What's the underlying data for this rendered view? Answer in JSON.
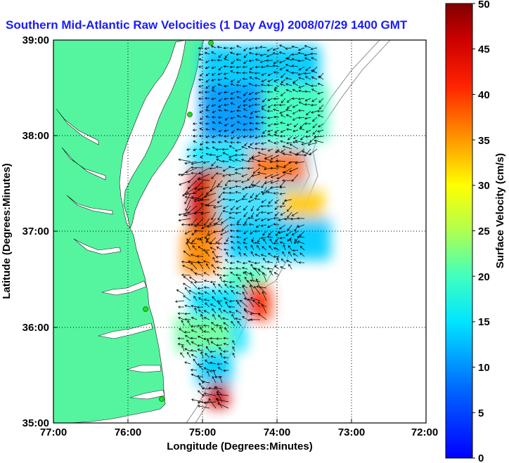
{
  "title": "Southern Mid-Atlantic Raw Velocities (1 Day Avg) 2008/07/29 1400 GMT",
  "xlabel": "Longitude (Degrees:Minutes)",
  "ylabel": "Latitude (Degrees:Minutes)",
  "colorbar_label": "Surface Velocity (cm/s)",
  "x_ticks": [
    "77:00",
    "76:00",
    "75:00",
    "74:00",
    "73:00",
    "72:00"
  ],
  "y_ticks": [
    "39:00",
    "38:00",
    "37:00",
    "36:00",
    "35:00"
  ],
  "cbar_ticks": [
    "50",
    "45",
    "40",
    "35",
    "30",
    "25",
    "20",
    "15",
    "10",
    "5",
    "0"
  ],
  "colors": {
    "land": "#55f5a0",
    "ocean": "#ffffff",
    "title": "#1a1aff",
    "station": "#22dd22",
    "bathymetry": "#a0a0a0"
  },
  "chart_data": {
    "type": "heatmap",
    "title": "Southern Mid-Atlantic Raw Velocities (1 Day Avg) 2008/07/29 1400 GMT",
    "xlabel": "Longitude (Degrees:Minutes)",
    "ylabel": "Latitude (Degrees:Minutes)",
    "xlim": [
      -77.0,
      -72.0
    ],
    "ylim": [
      35.0,
      39.0
    ],
    "colorbar": {
      "label": "Surface Velocity (cm/s)",
      "range": [
        0,
        50
      ],
      "colormap": "jet"
    },
    "grid": true,
    "marks": [
      {
        "lon": -74.8,
        "lat": 38.5,
        "speed": 8
      },
      {
        "lon": -74.5,
        "lat": 38.7,
        "speed": 10
      },
      {
        "lon": -74.1,
        "lat": 38.5,
        "speed": 13
      },
      {
        "lon": -73.8,
        "lat": 38.8,
        "speed": 18
      },
      {
        "lon": -73.7,
        "lat": 38.4,
        "speed": 16
      },
      {
        "lon": -74.9,
        "lat": 38.1,
        "speed": 5
      },
      {
        "lon": -74.5,
        "lat": 38.1,
        "speed": 8
      },
      {
        "lon": -74.0,
        "lat": 38.0,
        "speed": 12
      },
      {
        "lon": -73.8,
        "lat": 37.7,
        "speed": 33
      },
      {
        "lon": -74.1,
        "lat": 37.6,
        "speed": 30
      },
      {
        "lon": -75.1,
        "lat": 37.4,
        "speed": 47
      },
      {
        "lon": -74.8,
        "lat": 37.1,
        "speed": 30
      },
      {
        "lon": -74.5,
        "lat": 37.3,
        "speed": 15
      },
      {
        "lon": -74.5,
        "lat": 37.7,
        "speed": 17
      },
      {
        "lon": -74.0,
        "lat": 37.3,
        "speed": 14
      },
      {
        "lon": -73.7,
        "lat": 37.2,
        "speed": 22
      },
      {
        "lon": -74.5,
        "lat": 36.9,
        "speed": 9
      },
      {
        "lon": -74.1,
        "lat": 36.8,
        "speed": 14
      },
      {
        "lon": -75.0,
        "lat": 36.8,
        "speed": 17
      },
      {
        "lon": -75.2,
        "lat": 36.7,
        "speed": 30
      },
      {
        "lon": -74.6,
        "lat": 36.4,
        "speed": 13
      },
      {
        "lon": -74.2,
        "lat": 36.3,
        "speed": 36
      },
      {
        "lon": -74.6,
        "lat": 36.1,
        "speed": 16
      },
      {
        "lon": -74.9,
        "lat": 35.9,
        "speed": 15
      },
      {
        "lon": -75.2,
        "lat": 35.8,
        "speed": 17
      },
      {
        "lon": -74.6,
        "lat": 35.7,
        "speed": 11
      },
      {
        "lon": -75.0,
        "lat": 35.5,
        "speed": 16
      },
      {
        "lon": -74.8,
        "lat": 35.2,
        "speed": 45
      },
      {
        "lon": -74.9,
        "lat": 35.4,
        "speed": 22
      }
    ]
  }
}
